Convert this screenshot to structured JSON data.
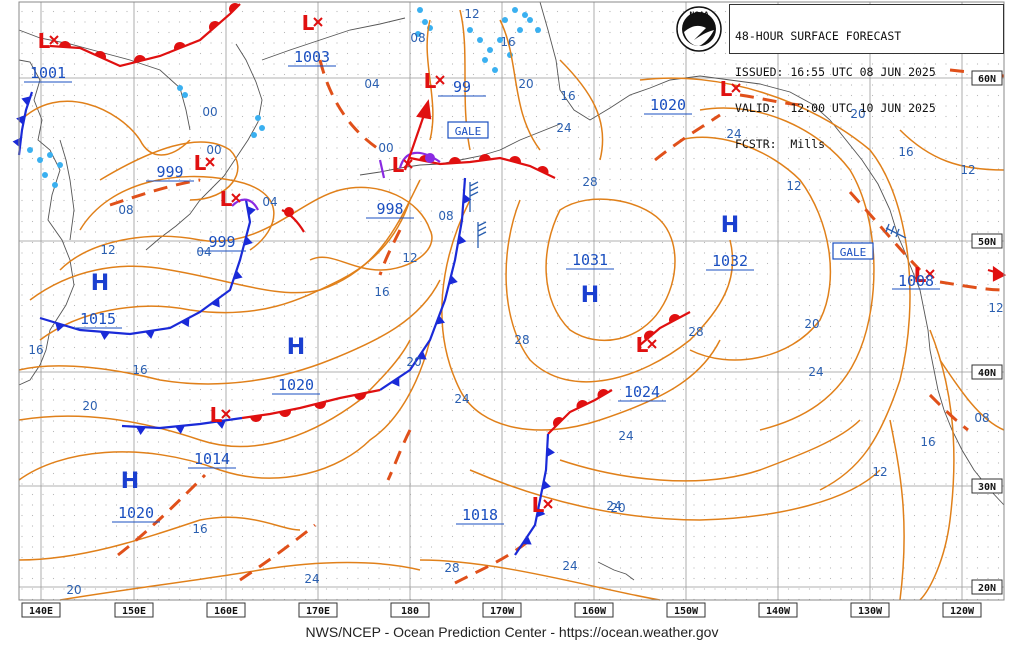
{
  "header": {
    "line1": "48-HOUR SURFACE FORECAST",
    "line2": "ISSUED: 16:55 UTC 08 JUN 2025",
    "line3": "VALID:  12:00 UTC 10 JUN 2025",
    "line4": "FCSTR:  Mills"
  },
  "logo_label": "NOAA",
  "footer": "NWS/NCEP - Ocean Prediction Center - https://ocean.weather.gov",
  "colors": {
    "isobar": "#e0801a",
    "isobar_label": "#2a5fb0",
    "cold_front": "#1a2ad8",
    "warm_front": "#e01010",
    "occluded": "#8a2be2",
    "trough": "#e0501a",
    "high": "#1a3fd0",
    "low": "#e01010",
    "land": "#555555",
    "ice": "#3ab0f0"
  },
  "lon_labels": [
    "140E",
    "150E",
    "160E",
    "170E",
    "180",
    "170W",
    "160W",
    "150W",
    "140W",
    "130W",
    "120W"
  ],
  "lat_labels": [
    "60N",
    "50N",
    "40N",
    "30N",
    "20N"
  ],
  "highs": [
    {
      "label": "H",
      "pressure": "1015"
    },
    {
      "label": "H",
      "pressure": "1020"
    },
    {
      "label": "H",
      "pressure": "1020"
    },
    {
      "label": "H",
      "pressure": "1031"
    },
    {
      "label": "H",
      "pressure": "1032"
    }
  ],
  "lows": [
    {
      "label": "L",
      "pressure": "1001"
    },
    {
      "label": "L",
      "pressure": "1003"
    },
    {
      "label": "L",
      "pressure": "999"
    },
    {
      "label": "L",
      "pressure": "999"
    },
    {
      "label": "L",
      "pressure": "998"
    },
    {
      "label": "L",
      "pressure": "1014"
    },
    {
      "label": "L",
      "pressure": "1018"
    },
    {
      "label": "L",
      "pressure": "1024"
    },
    {
      "label": "L",
      "pressure": "1020"
    },
    {
      "label": "L",
      "pressure": "1008"
    },
    {
      "label": "L",
      "pressure": "99"
    }
  ],
  "warnings": [
    "GALE",
    "GALE"
  ],
  "isobar_labels": [
    "04",
    "00",
    "08",
    "00",
    "04",
    "04",
    "00",
    "08",
    "12",
    "16",
    "20",
    "24",
    "28",
    "28",
    "24",
    "20",
    "16",
    "12",
    "08",
    "12",
    "16",
    "20",
    "24",
    "28",
    "24",
    "20",
    "16",
    "12",
    "16",
    "12",
    "24",
    "16",
    "20",
    "24",
    "28",
    "24",
    "20",
    "16",
    "12",
    "08",
    "12",
    "16",
    "20",
    "24"
  ]
}
